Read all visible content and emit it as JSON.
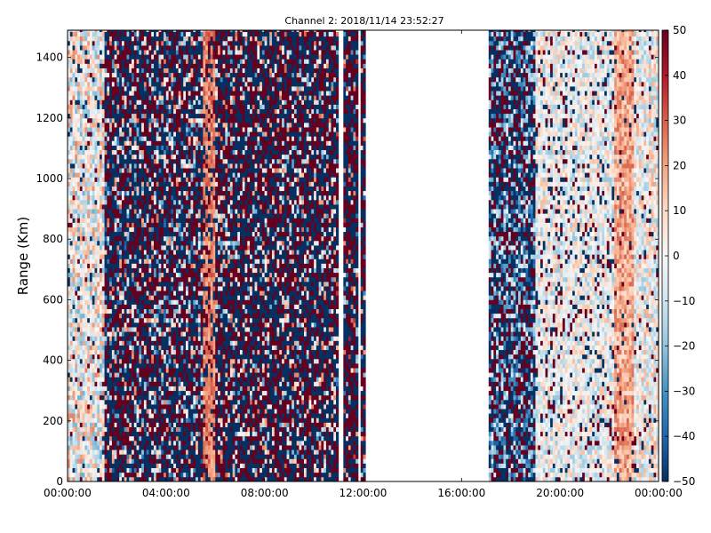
{
  "chart_data": {
    "type": "heatmap",
    "title": "Channel 2: 2018/11/14 23:52:27",
    "xlabel": "",
    "ylabel": "Range (Km)",
    "x_tick_labels": [
      "00:00:00",
      "04:00:00",
      "08:00:00",
      "12:00:00",
      "16:00:00",
      "20:00:00",
      "00:00:00"
    ],
    "x_range": [
      "00:00:00",
      "24:00:00"
    ],
    "y_ticks": [
      0,
      200,
      400,
      600,
      800,
      1000,
      1200,
      1400
    ],
    "ylim": [
      0,
      1490
    ],
    "colorbar": {
      "ticks": [
        50,
        40,
        30,
        20,
        10,
        0,
        -10,
        -20,
        -30,
        -40,
        -50
      ],
      "range": [
        -50,
        50
      ],
      "colormap": [
        "#053061",
        "#2166ac",
        "#4393c3",
        "#92c5de",
        "#d1e5f0",
        "#f7f7f7",
        "#fddbc7",
        "#f4a582",
        "#d6604d",
        "#b2182b",
        "#67001f"
      ]
    },
    "time_resolution_minutes": 6,
    "range_resolution_km": 15,
    "data_gaps": [
      [
        "12:12:00",
        "17:06:00"
      ]
    ],
    "regimes": [
      {
        "from": "00:00:00",
        "to": "01:30:00",
        "typical": "mixed light blue / pink, low amplitude"
      },
      {
        "from": "01:30:00",
        "to": "05:30:00",
        "typical": "saturated ±50 noise"
      },
      {
        "from": "05:30:00",
        "to": "06:00:00",
        "typical": "persistent positive band ~+20"
      },
      {
        "from": "06:00:00",
        "to": "12:12:00",
        "typical": "saturated ±50 noise, sparse columns after 10:50"
      },
      {
        "from": "17:06:00",
        "to": "19:00:00",
        "typical": "mixed blue / saturated"
      },
      {
        "from": "19:00:00",
        "to": "24:00:00",
        "typical": "low amplitude near 0, scattered saturated pixels, pink band ~22:30"
      }
    ]
  }
}
